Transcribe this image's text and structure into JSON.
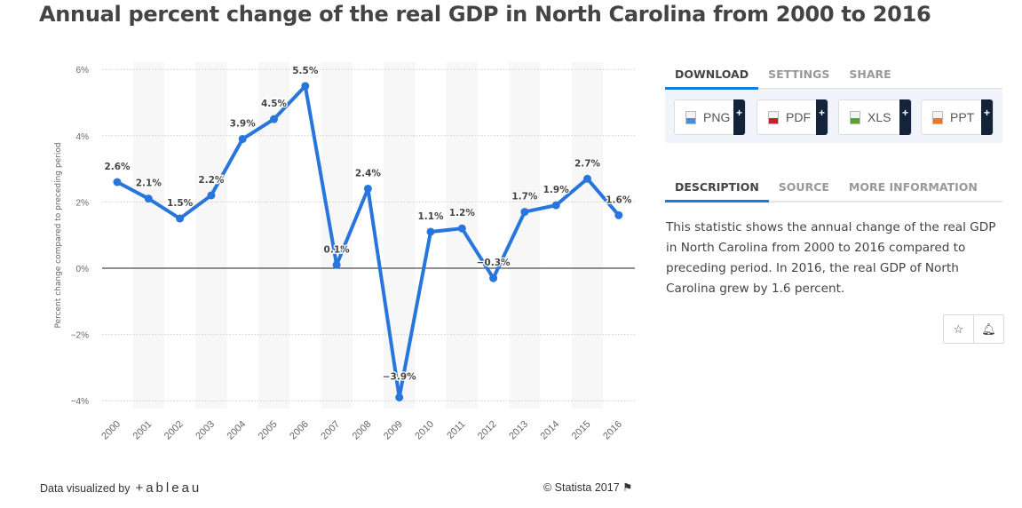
{
  "title": "Annual percent change of the real GDP in North Carolina from 2000 to 2016",
  "chart_data": {
    "type": "line",
    "x": [
      "2000",
      "2001",
      "2002",
      "2003",
      "2004",
      "2005",
      "2006",
      "2007",
      "2008",
      "2009",
      "2010",
      "2011",
      "2012",
      "2013",
      "2014",
      "2015",
      "2016"
    ],
    "values": [
      2.6,
      2.1,
      1.5,
      2.2,
      3.9,
      4.5,
      5.5,
      0.1,
      2.4,
      -3.9,
      1.1,
      1.2,
      -0.3,
      1.7,
      1.9,
      2.7,
      1.6
    ],
    "data_labels": [
      "2.6%",
      "2.1%",
      "1.5%",
      "2.2%",
      "3.9%",
      "4.5%",
      "5.5%",
      "0.1%",
      "2.4%",
      "-3.9%",
      "1.1%",
      "1.2%",
      "-0.3%",
      "1.7%",
      "1.9%",
      "2.7%",
      "1.6%"
    ],
    "ylabel": "Percent change compared to preceding period",
    "ylim": [
      -4,
      6
    ],
    "yticks": [
      6,
      4,
      2,
      0,
      -2,
      -4
    ],
    "ytick_labels": [
      "6%",
      "4%",
      "2%",
      "0%",
      "-2%",
      "-4%"
    ],
    "grid": true,
    "line_color": "#2876dd"
  },
  "download_tabs": [
    "DOWNLOAD",
    "SETTINGS",
    "SHARE"
  ],
  "download_buttons": [
    {
      "label": "PNG",
      "color": "#4a8fd6"
    },
    {
      "label": "PDF",
      "color": "#c8202a"
    },
    {
      "label": "XLS",
      "color": "#5aa02c"
    },
    {
      "label": "PPT",
      "color": "#e8772a"
    }
  ],
  "plus": "+",
  "info_tabs": [
    "DESCRIPTION",
    "SOURCE",
    "MORE INFORMATION"
  ],
  "description": "This statistic shows the annual change of the real GDP in North Carolina from 2000 to 2016 compared to preceding period. In 2016, the real GDP of North Carolina grew by 1.6 percent.",
  "icons": {
    "star": "☆",
    "bell": "🔔︎"
  },
  "footer": {
    "visualized_by": "Data visualized by",
    "tableau": "+ableau",
    "copyright": "© Statista 2017",
    "flag": "⚑"
  }
}
